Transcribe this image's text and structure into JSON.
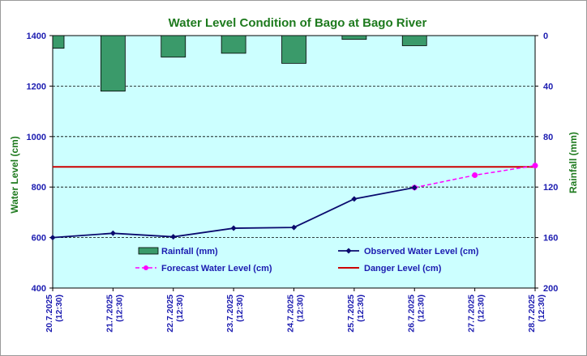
{
  "chart_data": {
    "type": "bar+line",
    "title": "Water Level Condition of Bago at Bago River",
    "ylabel_left": "Water Level (cm)",
    "ylabel_right": "Rainfall (mm)",
    "y_left_lim": [
      400,
      1400
    ],
    "y_left_ticks": [
      "1400",
      "1200",
      "1000",
      "800",
      "600",
      "400"
    ],
    "y_right_lim": [
      0,
      200
    ],
    "y_right_ticks": [
      "0",
      "40",
      "80",
      "120",
      "160",
      "200"
    ],
    "y_right_inverted": true,
    "grid": "horizontal dashed",
    "categories": [
      [
        "20.7.2025",
        "(12:30)"
      ],
      [
        "21.7.2025",
        "(12:30)"
      ],
      [
        "22.7.2025",
        "(12:30)"
      ],
      [
        "23.7.2025",
        "(12:30)"
      ],
      [
        "24.7.2025",
        "(12:30)"
      ],
      [
        "25.7.2025",
        "(12:30)"
      ],
      [
        "26.7.2025",
        "(12:30)"
      ],
      [
        "27.7.2025",
        "(12:30)"
      ],
      [
        "28.7.2025",
        "(12:30)"
      ]
    ],
    "series": [
      {
        "name": "Rainfall (mm)",
        "type": "bar",
        "axis": "right",
        "color": "#3a9a6a",
        "values": [
          10,
          44,
          17,
          14,
          22,
          3,
          8,
          null,
          null
        ]
      },
      {
        "name": "Observed Water Level (cm)",
        "type": "line",
        "axis": "left",
        "color": "#0a0a6e",
        "values": [
          600,
          617,
          603,
          637,
          640,
          753,
          798,
          null,
          null
        ]
      },
      {
        "name": "Forecast Water Level (cm)",
        "type": "line-dashed",
        "axis": "left",
        "color": "#ff00ff",
        "values": [
          null,
          null,
          null,
          null,
          null,
          null,
          798,
          847,
          885
        ]
      },
      {
        "name": "Danger Level (cm)",
        "type": "hline",
        "axis": "left",
        "color": "#cc0000",
        "value": 880
      }
    ],
    "legend_position": "bottom-inside"
  },
  "colors": {
    "plot_bg": "#ccffff",
    "axis_text": "#1b1bb0",
    "title": "#1e7a1e"
  }
}
